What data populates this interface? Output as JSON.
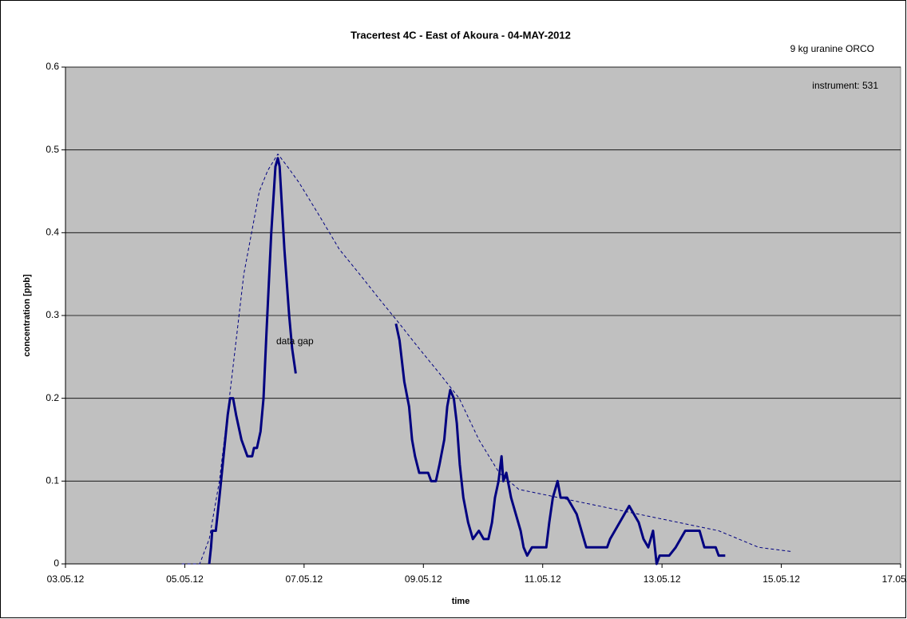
{
  "chart_data": {
    "type": "line",
    "title": "Tracertest 4C - East of Akoura  -  04-MAY-2012",
    "subtitle": "9 kg uranine ORCO",
    "annotations": [
      "instrument: 531",
      "data gap"
    ],
    "x_label": "time",
    "y_label": "concentration [ppb]",
    "xlim": [
      3,
      17
    ],
    "xticks": [
      {
        "value": 3,
        "label": "03.05.12"
      },
      {
        "value": 5,
        "label": "05.05.12"
      },
      {
        "value": 7,
        "label": "07.05.12"
      },
      {
        "value": 9,
        "label": "09.05.12"
      },
      {
        "value": 11,
        "label": "11.05.12"
      },
      {
        "value": 13,
        "label": "13.05.12"
      },
      {
        "value": 15,
        "label": "15.05.12"
      },
      {
        "value": 17,
        "label": "17.05.12"
      }
    ],
    "ylim": [
      0,
      0.6
    ],
    "yticks": [
      0,
      0.1,
      0.2,
      0.3,
      0.4,
      0.5,
      0.6
    ],
    "grid": true,
    "plot_background": "#c0c0c0",
    "series": [
      {
        "color": "#000080",
        "style": "solid",
        "x": [
          5.41,
          5.44,
          5.46,
          5.52,
          5.58,
          5.65,
          5.72,
          5.76,
          5.81,
          5.86,
          5.95,
          6.0,
          6.05,
          6.13,
          6.16,
          6.21,
          6.27,
          6.32,
          6.37,
          6.45,
          6.52,
          6.56,
          6.59,
          6.67,
          6.75,
          6.8,
          6.86,
          7.9,
          8.54,
          8.6,
          8.68,
          8.76,
          8.81,
          8.86,
          8.93,
          9.08,
          9.13,
          9.21,
          9.27,
          9.35,
          9.4,
          9.45,
          9.51,
          9.56,
          9.61,
          9.67,
          9.75,
          9.83,
          9.93,
          10.01,
          10.09,
          10.15,
          10.2,
          10.26,
          10.31,
          10.34,
          10.39,
          10.47,
          10.55,
          10.63,
          10.68,
          10.74,
          10.82,
          11.06,
          11.11,
          11.17,
          11.25,
          11.3,
          11.41,
          11.49,
          11.57,
          11.65,
          11.73,
          12.08,
          12.13,
          12.21,
          12.29,
          12.37,
          12.45,
          12.53,
          12.61,
          12.69,
          12.77,
          12.85,
          12.91,
          12.96,
          13.12,
          13.23,
          13.31,
          13.39,
          13.55,
          13.63,
          13.71,
          13.9,
          13.95,
          14.06
        ],
        "values": [
          0,
          0.02,
          0.04,
          0.04,
          0.08,
          0.13,
          0.18,
          0.2,
          0.2,
          0.18,
          0.15,
          0.14,
          0.13,
          0.13,
          0.14,
          0.14,
          0.16,
          0.2,
          0.28,
          0.4,
          0.48,
          0.49,
          0.48,
          0.38,
          0.3,
          0.26,
          0.23,
          null,
          0.29,
          0.27,
          0.22,
          0.19,
          0.15,
          0.13,
          0.11,
          0.11,
          0.1,
          0.1,
          0.12,
          0.15,
          0.19,
          0.21,
          0.2,
          0.17,
          0.12,
          0.08,
          0.05,
          0.03,
          0.04,
          0.03,
          0.03,
          0.05,
          0.08,
          0.1,
          0.13,
          0.1,
          0.11,
          0.08,
          0.06,
          0.04,
          0.02,
          0.01,
          0.02,
          0.02,
          0.05,
          0.08,
          0.1,
          0.08,
          0.08,
          0.07,
          0.06,
          0.04,
          0.02,
          0.02,
          0.03,
          0.04,
          0.05,
          0.06,
          0.07,
          0.06,
          0.05,
          0.03,
          0.02,
          0.04,
          0,
          0.01,
          0.01,
          0.02,
          0.03,
          0.04,
          0.04,
          0.04,
          0.02,
          0.02,
          0.01,
          0.01
        ]
      },
      {
        "color": "#000080",
        "style": "dashed",
        "x": [
          4.95,
          5.25,
          5.41,
          5.58,
          5.78,
          5.99,
          6.12,
          6.25,
          6.39,
          6.56,
          6.72,
          6.92,
          7.26,
          7.59,
          7.93,
          8.26,
          8.6,
          8.93,
          9.27,
          9.6,
          9.93,
          10.27,
          10.6,
          11.27,
          11.94,
          12.61,
          13.28,
          13.95,
          14.62,
          15.16
        ],
        "values": [
          0,
          0,
          0.03,
          0.1,
          0.22,
          0.35,
          0.4,
          0.45,
          0.475,
          0.495,
          0.48,
          0.46,
          0.42,
          0.38,
          0.35,
          0.32,
          0.29,
          0.26,
          0.23,
          0.2,
          0.15,
          0.11,
          0.09,
          0.08,
          0.07,
          0.06,
          0.05,
          0.04,
          0.02,
          0.015
        ]
      }
    ]
  }
}
